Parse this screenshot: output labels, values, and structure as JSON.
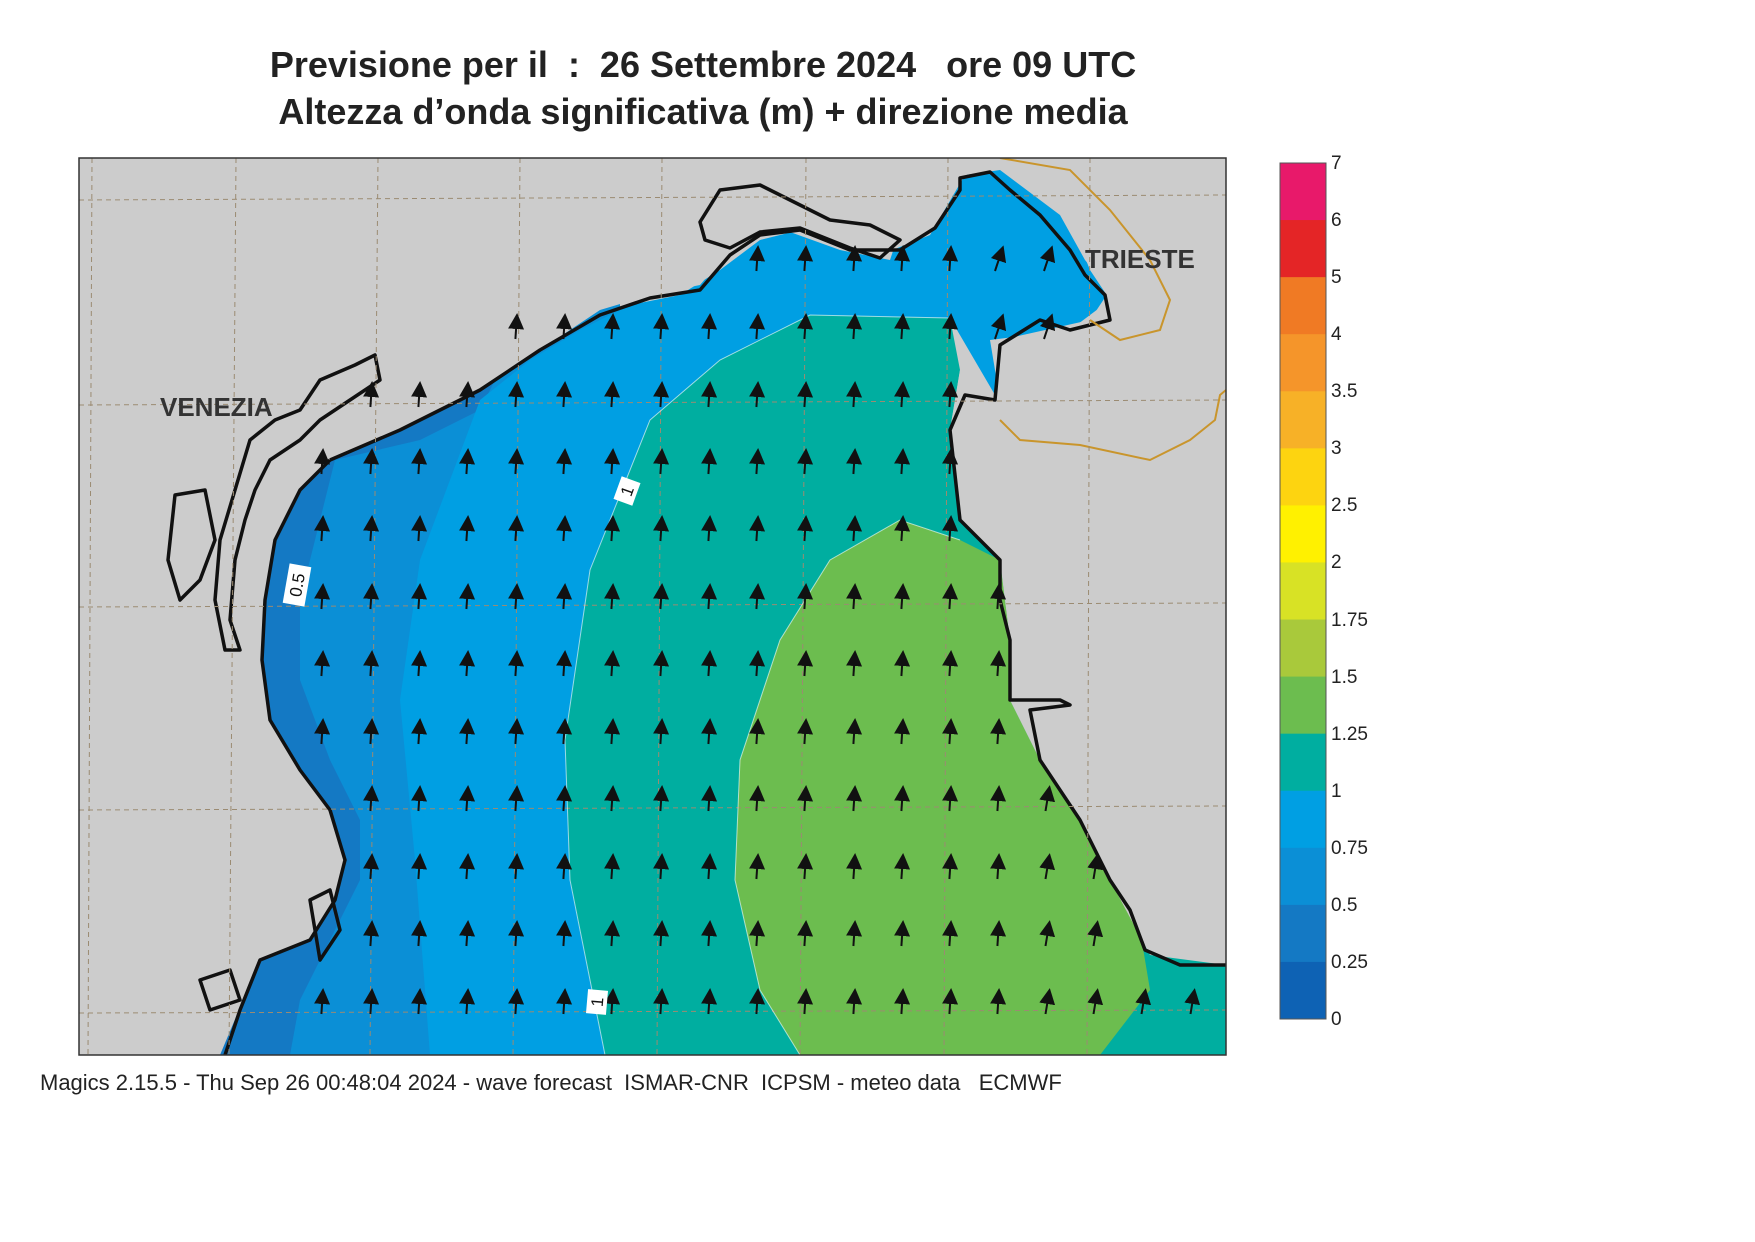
{
  "title": {
    "line1": "Previsione per il  :  26 Settembre 2024   ore 09 UTC",
    "line2": "Altezza d’onda significativa (m) + direzione media"
  },
  "places": {
    "venezia": "VENEZIA",
    "trieste": "TRIESTE"
  },
  "contour_labels": {
    "half": "0.5",
    "one_north": "1",
    "one_south": "1"
  },
  "colorbar": {
    "ticks": [
      "7",
      "6",
      "5",
      "4",
      "3.5",
      "3",
      "2.5",
      "2",
      "1.75",
      "1.5",
      "1.25",
      "1",
      "0.75",
      "0.5",
      "0.25",
      "0"
    ],
    "colors": [
      "#e8196a",
      "#e42526",
      "#f07a24",
      "#f5952a",
      "#f7b127",
      "#fdd410",
      "#fff100",
      "#d8e225",
      "#a9c93b",
      "#6cbd4f",
      "#00aea0",
      "#009fe3",
      "#0b8fd6",
      "#1479c4",
      "#0e62b4"
    ]
  },
  "legend_colors": {
    "land": "#cccccc",
    "sea_025_05": "#1479c4",
    "sea_05_075": "#0b8fd6",
    "sea_075_1": "#009fe3",
    "sea_1_125": "#00aea0",
    "sea_125_15": "#6cbd4f"
  },
  "wave_direction": "north",
  "footer": "Magics 2.15.5 - Thu Sep 26 00:48:04 2024 - wave forecast  ISMAR-CNR  ICPSM - meteo data   ECMWF"
}
